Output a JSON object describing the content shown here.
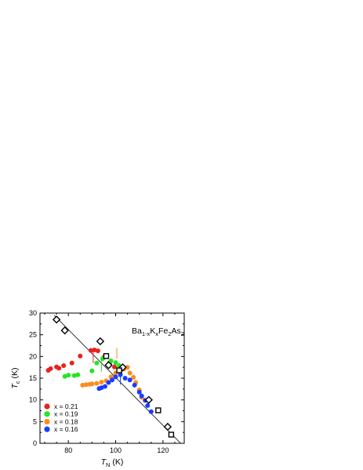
{
  "chart_data": {
    "type": "scatter",
    "title": {
      "parts": [
        {
          "text": "Ba",
          "sub": false
        },
        {
          "text": "1-x",
          "sub": true
        },
        {
          "text": "K",
          "sub": false
        },
        {
          "text": "x",
          "sub": true
        },
        {
          "text": "Fe",
          "sub": false
        },
        {
          "text": "2",
          "sub": true
        },
        {
          "text": "As",
          "sub": false
        },
        {
          "text": "2",
          "sub": true
        }
      ]
    },
    "xlabel": {
      "italic": "T",
      "sub": "N",
      "unit": " (K)"
    },
    "ylabel": {
      "italic": "T",
      "sub": "c",
      "unit": " (K)"
    },
    "xlim": [
      68,
      129
    ],
    "ylim": [
      0,
      30
    ],
    "xticks": [
      80,
      100,
      120
    ],
    "yticks": [
      0,
      5,
      10,
      15,
      20,
      25,
      30
    ],
    "grid": false,
    "legend_position": "bottom-left",
    "series": [
      {
        "name": "x = 0.21",
        "color": "#e8221c",
        "points": [
          [
            71.5,
            16.8
          ],
          [
            72.5,
            17.2
          ],
          [
            75,
            17.6
          ],
          [
            76,
            17.3
          ],
          [
            78,
            17.9
          ],
          [
            81.5,
            18.5
          ],
          [
            85,
            20.1
          ],
          [
            89.5,
            21.4
          ],
          [
            91,
            21.5
          ],
          [
            92.5,
            21.3
          ],
          [
            95,
            19.8
          ],
          [
            97.5,
            18.6
          ],
          [
            99.5,
            17.6
          ],
          [
            101.5,
            17.2
          ]
        ]
      },
      {
        "name": "x = 0.19",
        "color": "#22e622",
        "points": [
          [
            78.5,
            15.4
          ],
          [
            80,
            15.7
          ],
          [
            82.5,
            15.6
          ],
          [
            84,
            15.8
          ],
          [
            90,
            16.7
          ],
          [
            92,
            18.5
          ],
          [
            94.5,
            19.5
          ],
          [
            96,
            20.0
          ],
          [
            98,
            19.0
          ],
          [
            100,
            18.6
          ],
          [
            101.5,
            17.9
          ],
          [
            102,
            17.2
          ]
        ]
      },
      {
        "name": "x = 0.18",
        "color": "#ff8c1a",
        "points": [
          [
            86,
            13.4
          ],
          [
            87.5,
            13.5
          ],
          [
            89,
            13.6
          ],
          [
            90,
            13.7
          ],
          [
            92,
            13.8
          ],
          [
            94,
            14.1
          ],
          [
            96,
            14.4
          ],
          [
            98,
            15.3
          ],
          [
            100,
            16.2
          ],
          [
            102,
            16.7
          ],
          [
            103.5,
            17.1
          ],
          [
            105,
            17.5
          ],
          [
            106,
            16.2
          ],
          [
            107.5,
            15.2
          ],
          [
            108.5,
            14.0
          ],
          [
            110,
            12.3
          ],
          [
            111,
            10.6
          ]
        ]
      },
      {
        "name": "x = 0.16",
        "color": "#1a3cff",
        "points": [
          [
            93,
            12.6
          ],
          [
            94,
            12.8
          ],
          [
            95.5,
            13.1
          ],
          [
            97,
            14.0
          ],
          [
            98.5,
            14.6
          ],
          [
            100,
            15.3
          ],
          [
            102,
            15.8
          ],
          [
            104,
            15.0
          ],
          [
            106,
            14.6
          ],
          [
            108,
            13.4
          ],
          [
            110,
            11.8
          ],
          [
            111,
            10.9
          ],
          [
            112.5,
            9.9
          ],
          [
            113.5,
            8.7
          ],
          [
            115,
            7.3
          ]
        ]
      }
    ],
    "open_markers": {
      "diamonds": [
        [
          75,
          28.5
        ],
        [
          78.5,
          26.0
        ],
        [
          93.5,
          23.5
        ],
        [
          97,
          18.0
        ],
        [
          103,
          17.5
        ],
        [
          114,
          10.0
        ],
        [
          122,
          3.8
        ]
      ],
      "squares": [
        [
          96,
          20.1
        ],
        [
          101.5,
          16.8
        ],
        [
          118,
          7.6
        ],
        [
          123.5,
          2.0
        ]
      ]
    },
    "fit_line": {
      "from": [
        74,
        29.5
      ],
      "to": [
        127.5,
        0
      ]
    },
    "vertical_markers": [
      {
        "color": "#e8221c",
        "x": 90.5,
        "y0": 18.5,
        "y1": 21.5
      },
      {
        "color": "#22e622",
        "x": 94.0,
        "y0": 16.5,
        "y1": 19.5
      },
      {
        "color": "#ff8c1a",
        "x": 100.5,
        "y0": 19.5,
        "y1": 22.0
      },
      {
        "color": "#1a3cff",
        "x": 102.0,
        "y0": 13.5,
        "y1": 16.5
      }
    ]
  }
}
